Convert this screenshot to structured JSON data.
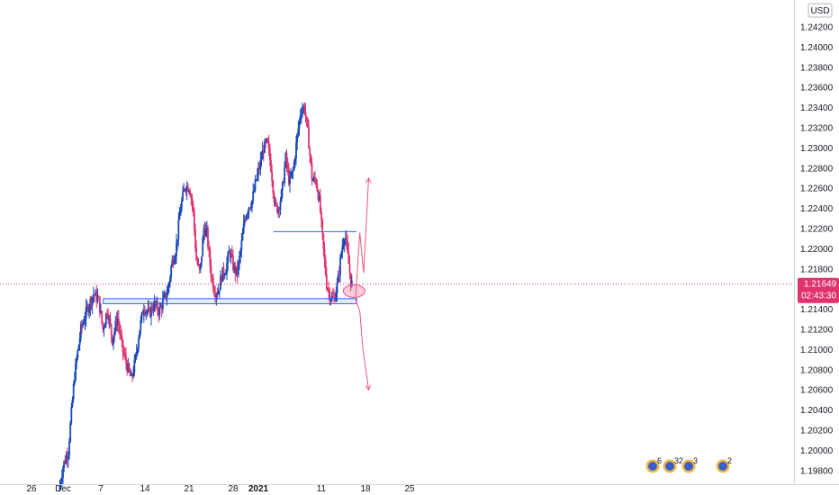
{
  "currency_label": "USD",
  "current_price_label": "1.21649",
  "countdown_label": "02:43:30",
  "colors": {
    "up": "#1848b8",
    "down": "#e0336b",
    "support_zone": "#2962ff",
    "price_line": "#e0336b",
    "projection": "#f0567e"
  },
  "events": [
    {
      "label": "6",
      "date": "Jan 12"
    },
    {
      "label": "32",
      "date": "Jan 13"
    },
    {
      "label": "3",
      "date": "Jan 14"
    },
    {
      "label": "2",
      "date": "Jan 19"
    }
  ],
  "chart_data": {
    "type": "candlestick",
    "title": "",
    "xlabel": "",
    "ylabel": "",
    "timeframe": "4h",
    "ylim": [
      1.1968,
      1.2455
    ],
    "xlim": [
      "2020-11-26",
      "2021-01-25"
    ],
    "grid": false,
    "y_ticks": [
      "1.19800",
      "1.20000",
      "1.20200",
      "1.20400",
      "1.20600",
      "1.20800",
      "1.21000",
      "1.21200",
      "1.21400",
      "1.21600",
      "1.21800",
      "1.22000",
      "1.22200",
      "1.22400",
      "1.22600",
      "1.22800",
      "1.23000",
      "1.23200",
      "1.23400",
      "1.23600",
      "1.23800",
      "1.24000",
      "1.24200"
    ],
    "x_ticks": [
      {
        "label": "26",
        "day": 0
      },
      {
        "label": "Dec",
        "day": 5
      },
      {
        "label": "7",
        "day": 11
      },
      {
        "label": "14",
        "day": 18
      },
      {
        "label": "21",
        "day": 25
      },
      {
        "label": "28",
        "day": 32
      },
      {
        "label": "2021",
        "day": 36,
        "bold": true
      },
      {
        "label": "11",
        "day": 46
      },
      {
        "label": "18",
        "day": 53
      },
      {
        "label": "25",
        "day": 60
      }
    ],
    "price_path": [
      [
        4.5,
        1.196
      ],
      [
        5.2,
        1.1985
      ],
      [
        6.0,
        1.2
      ],
      [
        7.0,
        1.2075
      ],
      [
        8.0,
        1.212
      ],
      [
        9.0,
        1.214
      ],
      [
        10.0,
        1.2155
      ],
      [
        10.8,
        1.215
      ],
      [
        11.5,
        1.212
      ],
      [
        12.2,
        1.214
      ],
      [
        13.0,
        1.211
      ],
      [
        13.8,
        1.2132
      ],
      [
        14.6,
        1.21
      ],
      [
        15.4,
        1.2082
      ],
      [
        16.0,
        1.207
      ],
      [
        16.6,
        1.2088
      ],
      [
        17.3,
        1.212
      ],
      [
        18.0,
        1.2143
      ],
      [
        18.8,
        1.2135
      ],
      [
        19.6,
        1.2145
      ],
      [
        20.4,
        1.2138
      ],
      [
        21.2,
        1.215
      ],
      [
        21.8,
        1.2158
      ],
      [
        22.4,
        1.2185
      ],
      [
        23.1,
        1.22
      ],
      [
        23.8,
        1.224
      ],
      [
        24.5,
        1.2262
      ],
      [
        25.2,
        1.2262
      ],
      [
        25.8,
        1.224
      ],
      [
        26.3,
        1.219
      ],
      [
        26.9,
        1.2175
      ],
      [
        27.5,
        1.222
      ],
      [
        28.0,
        1.2215
      ],
      [
        28.6,
        1.2178
      ],
      [
        29.2,
        1.2158
      ],
      [
        29.8,
        1.2158
      ],
      [
        30.4,
        1.2175
      ],
      [
        31.0,
        1.218
      ],
      [
        31.6,
        1.2198
      ],
      [
        32.2,
        1.2182
      ],
      [
        32.8,
        1.2175
      ],
      [
        33.4,
        1.22
      ],
      [
        34.0,
        1.223
      ],
      [
        34.6,
        1.2242
      ],
      [
        35.2,
        1.2248
      ],
      [
        35.8,
        1.2268
      ],
      [
        36.4,
        1.2282
      ],
      [
        37.0,
        1.23
      ],
      [
        37.6,
        1.2305
      ],
      [
        38.2,
        1.228
      ],
      [
        38.8,
        1.2242
      ],
      [
        39.3,
        1.224
      ],
      [
        39.9,
        1.2255
      ],
      [
        40.5,
        1.229
      ],
      [
        41.1,
        1.2265
      ],
      [
        41.7,
        1.2278
      ],
      [
        42.3,
        1.231
      ],
      [
        42.9,
        1.2338
      ],
      [
        43.5,
        1.234
      ],
      [
        44.1,
        1.231
      ],
      [
        44.7,
        1.2268
      ],
      [
        45.3,
        1.2268
      ],
      [
        45.9,
        1.2245
      ],
      [
        46.4,
        1.2205
      ],
      [
        47.0,
        1.2165
      ],
      [
        47.6,
        1.2152
      ],
      [
        48.2,
        1.215
      ],
      [
        48.8,
        1.2168
      ],
      [
        49.4,
        1.22
      ],
      [
        49.9,
        1.2216
      ],
      [
        50.4,
        1.219
      ],
      [
        50.9,
        1.2165
      ]
    ],
    "support_zone": {
      "x0_day": 11.4,
      "x1_day": 51.6,
      "y_low": 1.21455,
      "y_high": 1.21505
    },
    "resistance_line": {
      "x0_day": 38.4,
      "x1_day": 51.6,
      "y": 1.2217
    },
    "current_price": 1.21649,
    "target_ellipse": {
      "x_day": 51.2,
      "y": 1.2158
    },
    "projection_up": [
      [
        51.4,
        1.215
      ],
      [
        52.1,
        1.2216
      ],
      [
        52.7,
        1.2176
      ],
      [
        53.5,
        1.227
      ]
    ],
    "projection_down": [
      [
        51.4,
        1.215
      ],
      [
        52.1,
        1.2138
      ],
      [
        52.6,
        1.21
      ],
      [
        53.5,
        1.206
      ]
    ]
  }
}
